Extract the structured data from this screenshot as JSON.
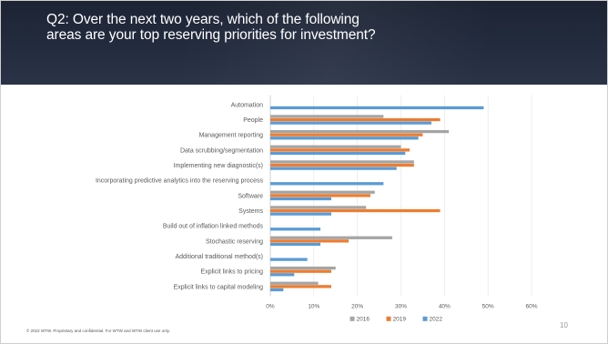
{
  "slide": {
    "title_lines": [
      "Q2: Over the next two years, which of the following",
      "areas are your top reserving priorities for investment?"
    ],
    "footer_note": "© 2022 WTW. Proprietary and confidential. For WTW and WTW client use only.",
    "page_number": "10",
    "colors": {
      "header": "#1c2434",
      "series_2016": "#a5a5a5",
      "series_2019": "#ed7d31",
      "series_2022": "#5b9bd5"
    }
  },
  "chart_data": {
    "type": "bar",
    "orientation": "horizontal",
    "categories": [
      "Automation",
      "People",
      "Management reporting",
      "Data scrubbing/segmentation",
      "Implementing new diagnostic(s)",
      "Incorporating predictive analytics into the reserving process",
      "Software",
      "Systems",
      "Build out of inflation linked methods",
      "Stochastic reserving",
      "Additional traditional method(s)",
      "Explicit links to pricing",
      "Explicit links to capital modeling"
    ],
    "series": [
      {
        "name": "2016",
        "color": "#a5a5a5",
        "values": [
          null,
          26,
          41,
          30,
          33,
          null,
          24,
          22,
          null,
          28,
          null,
          15,
          11
        ]
      },
      {
        "name": "2019",
        "color": "#ed7d31",
        "values": [
          null,
          39,
          35,
          32,
          33,
          null,
          23,
          39,
          null,
          18,
          null,
          14,
          14
        ]
      },
      {
        "name": "2022",
        "color": "#5b9bd5",
        "values": [
          49,
          37,
          34,
          31,
          29,
          26,
          14,
          14,
          11.5,
          11.5,
          8.5,
          5.5,
          3
        ]
      }
    ],
    "xlim": [
      0,
      60
    ],
    "xticks": [
      "0%",
      "10%",
      "20%",
      "30%",
      "40%",
      "50%",
      "60%"
    ],
    "xlabel": "",
    "ylabel": "",
    "grid": true,
    "legend": "bottom"
  }
}
